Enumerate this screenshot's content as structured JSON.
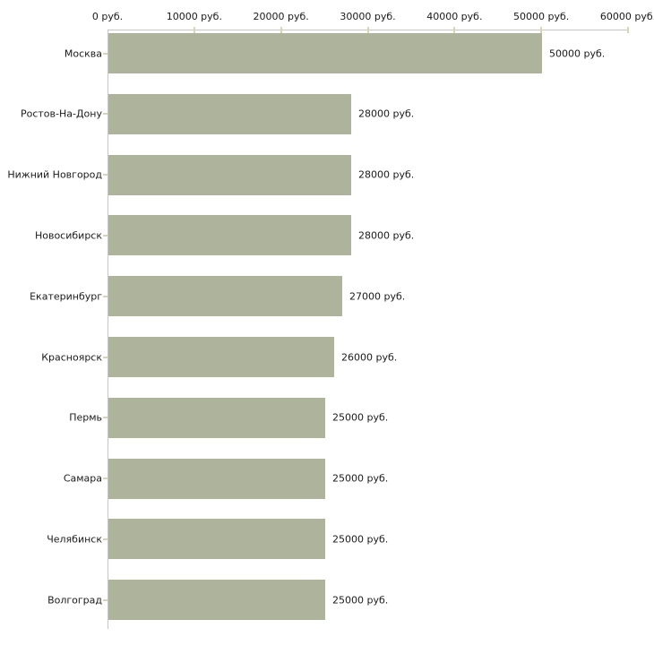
{
  "chart_data": {
    "type": "bar",
    "orientation": "horizontal",
    "title": "",
    "xlabel": "",
    "ylabel": "",
    "unit": "руб.",
    "categories": [
      "Москва",
      "Ростов-На-Дону",
      "Нижний Новгород",
      "Новосибирск",
      "Екатеринбург",
      "Красноярск",
      "Пермь",
      "Самара",
      "Челябинск",
      "Волгоград"
    ],
    "values": [
      50000,
      28000,
      28000,
      28000,
      27000,
      26000,
      25000,
      25000,
      25000,
      25000
    ],
    "value_labels": [
      "50000 руб.",
      "28000 руб.",
      "28000 руб.",
      "28000 руб.",
      "27000 руб.",
      "26000 руб.",
      "25000 руб.",
      "25000 руб.",
      "25000 руб.",
      "25000 руб."
    ],
    "x_ticks": [
      {
        "value": 0,
        "label": "0 руб."
      },
      {
        "value": 10000,
        "label": "10000 руб."
      },
      {
        "value": 20000,
        "label": "20000 руб."
      },
      {
        "value": 30000,
        "label": "30000 руб."
      },
      {
        "value": 40000,
        "label": "40000 руб."
      },
      {
        "value": 50000,
        "label": "50000 руб."
      },
      {
        "value": 60000,
        "label": "60000 руб."
      }
    ],
    "xlim": [
      0,
      60000
    ],
    "grid": false,
    "legend": false,
    "colors": {
      "bar": "#aeb49c",
      "axis_line": "#c6c6c6",
      "tick_mark": "#dad4b0",
      "text": "#1a1a1a",
      "background": "#ffffff"
    }
  }
}
